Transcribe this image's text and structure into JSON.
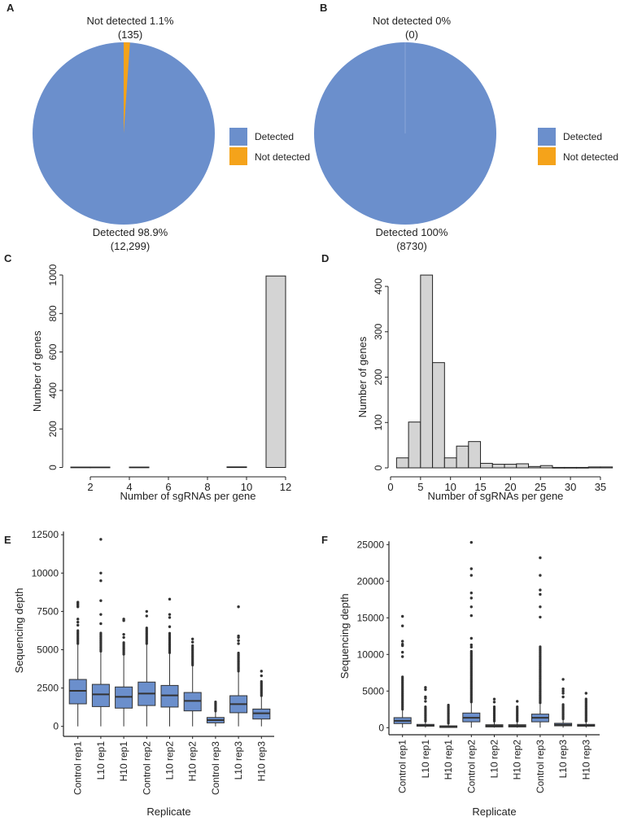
{
  "colors": {
    "detected": "#6b8fcc",
    "not_detected": "#f5a31a",
    "hist": "#d4d4d4",
    "box": "#6b8fcc",
    "ink": "#333333"
  },
  "chart_data": [
    {
      "panel": "A",
      "type": "pie",
      "legend": [
        "Detected",
        "Not detected"
      ],
      "legend_position": "right",
      "slices": [
        {
          "name": "Detected",
          "percent": 98.9,
          "count": 12299,
          "label": "Detected 98.9%",
          "sublabel": "(12,299)"
        },
        {
          "name": "Not detected",
          "percent": 1.1,
          "count": 135,
          "label": "Not detected 1.1%",
          "sublabel": "(135)"
        }
      ]
    },
    {
      "panel": "B",
      "type": "pie",
      "legend": [
        "Detected",
        "Not detected"
      ],
      "legend_position": "right",
      "slices": [
        {
          "name": "Detected",
          "percent": 100,
          "count": 8730,
          "label": "Detected 100%",
          "sublabel": "(8730)"
        },
        {
          "name": "Not detected",
          "percent": 0,
          "count": 0,
          "label": "Not detected 0%",
          "sublabel": "(0)"
        }
      ]
    },
    {
      "panel": "C",
      "type": "bar",
      "title": "",
      "xlabel": "Number of sgRNAs per gene",
      "ylabel": "Number of genes",
      "xlim": [
        2,
        12
      ],
      "ylim": [
        0,
        1000
      ],
      "xticks": [
        "2",
        "4",
        "6",
        "8",
        "10",
        "12"
      ],
      "yticks": [
        "0",
        "200",
        "400",
        "600",
        "800",
        "1000"
      ],
      "bins": [
        [
          1,
          2,
          2
        ],
        [
          2,
          3,
          2
        ],
        [
          4,
          5,
          2
        ],
        [
          9,
          10,
          3
        ],
        [
          11,
          12,
          995
        ]
      ]
    },
    {
      "panel": "D",
      "type": "bar",
      "title": "",
      "xlabel": "Number of sgRNAs per gene",
      "ylabel": "Number of genes",
      "xlim": [
        0,
        35
      ],
      "ylim": [
        0,
        400
      ],
      "xticks": [
        "0",
        "5",
        "10",
        "15",
        "20",
        "25",
        "30",
        "35"
      ],
      "yticks": [
        "0",
        "100",
        "200",
        "300",
        "400"
      ],
      "bin_start": 1,
      "bin_width": 2,
      "values": [
        22,
        101,
        425,
        232,
        22,
        48,
        58,
        10,
        8,
        8,
        9,
        3,
        5,
        1,
        1,
        1,
        2,
        2
      ]
    },
    {
      "panel": "E",
      "type": "box",
      "xlabel": "Replicate",
      "ylabel": "Sequencing depth",
      "ylim": [
        0,
        12500
      ],
      "yticks": [
        "0",
        "2500",
        "5000",
        "7500",
        "10000",
        "12500"
      ],
      "categories": [
        "Control rep1",
        "L10 rep1",
        "H10 rep1",
        "Control rep2",
        "L10 rep2",
        "H10 rep2",
        "Control rep3",
        "L10 rep3",
        "H10 rep3"
      ],
      "boxes": [
        {
          "q1": 1470,
          "median": 2320,
          "q3": 3060,
          "min": 0,
          "max": 5400,
          "dense_to": 6300,
          "outliers": [
            6600,
            6800,
            7000,
            7800,
            7900,
            8000,
            8100
          ]
        },
        {
          "q1": 1290,
          "median": 2090,
          "q3": 2740,
          "min": 0,
          "max": 4900,
          "dense_to": 6100,
          "outliers": [
            6700,
            7300,
            8200,
            9500,
            10000,
            12200
          ]
        },
        {
          "q1": 1190,
          "median": 1930,
          "q3": 2570,
          "min": 0,
          "max": 4700,
          "dense_to": 5500,
          "outliers": [
            5800,
            6000,
            6900,
            7000
          ]
        },
        {
          "q1": 1360,
          "median": 2140,
          "q3": 2890,
          "min": 0,
          "max": 5400,
          "dense_to": 6500,
          "outliers": [
            7200,
            7500
          ]
        },
        {
          "q1": 1260,
          "median": 2020,
          "q3": 2670,
          "min": 0,
          "max": 4800,
          "dense_to": 6100,
          "outliers": [
            6500,
            7100,
            7300,
            8300
          ]
        },
        {
          "q1": 1010,
          "median": 1660,
          "q3": 2210,
          "min": 0,
          "max": 4000,
          "dense_to": 5300,
          "outliers": [
            5500,
            5700
          ]
        },
        {
          "q1": 230,
          "median": 410,
          "q3": 580,
          "min": 0,
          "max": 1000,
          "dense_to": 1600,
          "outliers": []
        },
        {
          "q1": 890,
          "median": 1450,
          "q3": 2000,
          "min": 0,
          "max": 3600,
          "dense_to": 4800,
          "outliers": [
            5400,
            5600,
            5800,
            5900,
            7800
          ]
        },
        {
          "q1": 480,
          "median": 850,
          "q3": 1130,
          "min": 0,
          "max": 2000,
          "dense_to": 3000,
          "outliers": [
            3300,
            3600
          ]
        }
      ]
    },
    {
      "panel": "F",
      "type": "box",
      "xlabel": "Replicate",
      "ylabel": "Sequencing depth",
      "ylim": [
        0,
        25000
      ],
      "yticks": [
        "0",
        "5000",
        "10000",
        "15000",
        "20000",
        "25000"
      ],
      "categories": [
        "Control rep1",
        "L10 rep1",
        "H10 rep1",
        "Control rep2",
        "L10 rep2",
        "H10 rep2",
        "Control rep3",
        "L10 rep3",
        "H10 rep3"
      ],
      "boxes": [
        {
          "q1": 560,
          "median": 940,
          "q3": 1370,
          "min": 0,
          "max": 2500,
          "dense_to": 7000,
          "outliers": [
            9700,
            10300,
            11200,
            11400,
            11800,
            13900,
            15200
          ]
        },
        {
          "q1": 200,
          "median": 300,
          "q3": 450,
          "min": 0,
          "max": 900,
          "dense_to": 3000,
          "outliers": [
            3600,
            4000,
            4200,
            5200,
            5500
          ]
        },
        {
          "q1": 100,
          "median": 150,
          "q3": 250,
          "min": 0,
          "max": 600,
          "dense_to": 3100,
          "outliers": []
        },
        {
          "q1": 800,
          "median": 1350,
          "q3": 2000,
          "min": 0,
          "max": 3500,
          "dense_to": 10500,
          "outliers": [
            11000,
            11300,
            12200,
            15300,
            16500,
            17700,
            18400,
            20800,
            21700,
            25300
          ]
        },
        {
          "q1": 100,
          "median": 250,
          "q3": 400,
          "min": 0,
          "max": 900,
          "dense_to": 3000,
          "outliers": [
            3500,
            3900
          ]
        },
        {
          "q1": 100,
          "median": 250,
          "q3": 400,
          "min": 0,
          "max": 900,
          "dense_to": 3000,
          "outliers": [
            3600
          ]
        },
        {
          "q1": 800,
          "median": 1350,
          "q3": 1850,
          "min": 0,
          "max": 3400,
          "dense_to": 11200,
          "outliers": [
            15100,
            16500,
            18200,
            18800,
            20800,
            23200
          ]
        },
        {
          "q1": 250,
          "median": 400,
          "q3": 600,
          "min": 0,
          "max": 1200,
          "dense_to": 3300,
          "outliers": [
            4200,
            4700,
            5000,
            5300,
            6600
          ]
        },
        {
          "q1": 200,
          "median": 300,
          "q3": 450,
          "min": 0,
          "max": 900,
          "dense_to": 4000,
          "outliers": [
            4700
          ]
        }
      ]
    }
  ]
}
